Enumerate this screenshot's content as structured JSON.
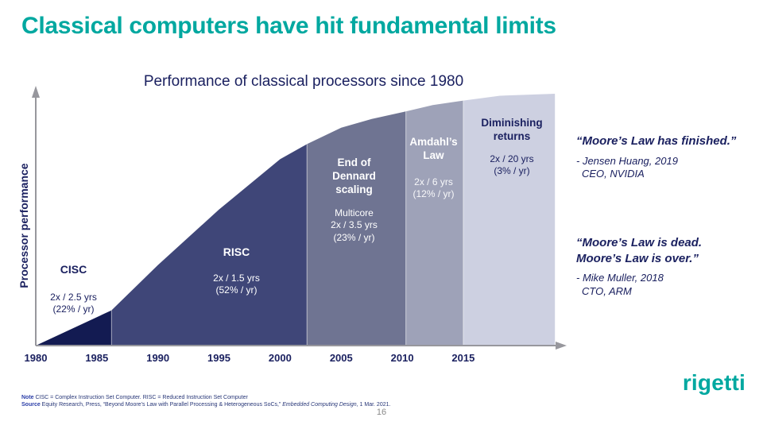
{
  "slide": {
    "title": "Classical computers have hit fundamental limits",
    "page_number": "16",
    "logo_text": "rigetti"
  },
  "brand": {
    "teal": "#00A8A0",
    "navy": "#1B2160"
  },
  "chart_data": {
    "type": "area",
    "title": "Performance of classical processors since 1980",
    "xlabel": "",
    "ylabel": "Processor performance",
    "x_min": 1980,
    "x_max": 2022,
    "x_ticks": [
      1980,
      1985,
      1990,
      1995,
      2000,
      2005,
      2010,
      2015
    ],
    "y_axis_note": "relative performance, no tick labels shown",
    "axis_color": "#97979D",
    "legend": "none",
    "grid": "off",
    "segments": [
      {
        "id": "cisc",
        "label": "CISC",
        "detail": "2x / 2.5 yrs\n(22% / yr)",
        "growth_rate": "2x / 2.5 yrs (22% / yr)",
        "color": "#131B52",
        "top_points": [
          [
            1980,
            0
          ],
          [
            1986.2,
            14
          ]
        ]
      },
      {
        "id": "risc",
        "label": "RISC",
        "detail": "2x / 1.5 yrs\n(52% / yr)",
        "growth_rate": "2x / 1.5 yrs (52% / yr)",
        "color": "#3F4678",
        "top_points": [
          [
            1986.2,
            14
          ],
          [
            1990,
            32
          ],
          [
            1995,
            54
          ],
          [
            2000,
            74
          ],
          [
            2002.2,
            80
          ]
        ]
      },
      {
        "id": "end-of-dennard-scaling",
        "label": "End of\nDennard\nscaling",
        "detail": "Multicore\n2x / 3.5 yrs\n(23% / yr)",
        "growth_rate": "Multicore 2x / 3.5 yrs (23% / yr)",
        "color": "#6F7492",
        "top_points": [
          [
            2002.2,
            80
          ],
          [
            2005,
            86.5
          ],
          [
            2007.5,
            90
          ],
          [
            2010.3,
            93
          ]
        ]
      },
      {
        "id": "amdahls-law",
        "label": "Amdahl’s\nLaw",
        "detail": "2x / 6 yrs\n(12% / yr)",
        "growth_rate": "2x / 6 yrs (12% / yr)",
        "color": "#9EA2B8",
        "top_points": [
          [
            2010.3,
            93
          ],
          [
            2012.5,
            95.5
          ],
          [
            2015,
            97.3
          ]
        ]
      },
      {
        "id": "diminishing-returns",
        "label": "Diminishing\nreturns",
        "detail": "2x / 20 yrs\n(3% / yr)",
        "growth_rate": "2x / 20 yrs (3% / yr)",
        "color": "#CDD0E1",
        "top_points": [
          [
            2015,
            97.3
          ],
          [
            2018,
            99.2
          ],
          [
            2022.5,
            100
          ]
        ]
      }
    ]
  },
  "quotes": [
    {
      "text": "“Moore’s Law has finished.”",
      "attribution": "- Jensen Huang, 2019",
      "role": "CEO, NVIDIA"
    },
    {
      "text": "“Moore’s Law is dead.\nMoore’s Law is over.”",
      "attribution": "- Mike Muller, 2018",
      "role": "CTO, ARM"
    }
  ],
  "footnotes": {
    "note_label": "Note",
    "note_text": " CISC = Complex Instruction Set Computer. RISC = Reduced Instruction Set Computer",
    "source_label": "Source",
    "source_pre": " Equity Research, Press, “Beyond Moore’s Law with Parallel Processing & Heterogeneous SoCs,” ",
    "source_journal": "Embedded Computing Design",
    "source_post": ", 1 Mar. 2021."
  }
}
